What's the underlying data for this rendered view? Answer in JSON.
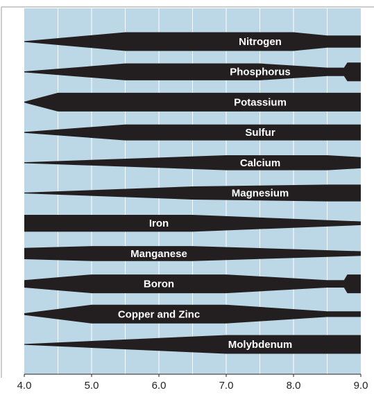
{
  "chart_data": {
    "type": "band",
    "xlim": [
      4,
      9
    ],
    "xticks": [
      {
        "value": 4,
        "label": "4.0"
      },
      {
        "value": 5,
        "label": "5.0"
      },
      {
        "value": 6,
        "label": "6.0"
      },
      {
        "value": 7,
        "label": "7.0"
      },
      {
        "value": 8,
        "label": "8.0"
      },
      {
        "value": 9,
        "label": "9.0"
      }
    ],
    "grid_xticks": [
      4.5,
      5,
      5.5,
      6,
      6.5,
      7,
      7.5,
      8,
      8.5
    ],
    "color": "#231f20",
    "background": "#bcd7e6",
    "grid": true,
    "series": [
      {
        "name": "Nitrogen",
        "points": [
          [
            4,
            0.05
          ],
          [
            5.5,
            1
          ],
          [
            8,
            1
          ],
          [
            8.5,
            0.65
          ],
          [
            9,
            0.65
          ]
        ]
      },
      {
        "name": "Phosphorus",
        "points": [
          [
            4,
            0.05
          ],
          [
            5.5,
            0.9
          ],
          [
            7.5,
            0.9
          ],
          [
            8.5,
            0.45
          ],
          [
            8.75,
            0.45
          ],
          [
            8.8,
            1
          ],
          [
            9,
            1
          ]
        ]
      },
      {
        "name": "Potassium",
        "points": [
          [
            4,
            0.05
          ],
          [
            4.5,
            1
          ],
          [
            9,
            1
          ]
        ]
      },
      {
        "name": "Sulfur",
        "points": [
          [
            4,
            0.05
          ],
          [
            5.5,
            0.85
          ],
          [
            9,
            0.85
          ]
        ]
      },
      {
        "name": "Calcium",
        "points": [
          [
            4,
            0.05
          ],
          [
            7,
            0.8
          ],
          [
            8.5,
            0.8
          ],
          [
            9,
            0.6
          ]
        ]
      },
      {
        "name": "Magnesium",
        "points": [
          [
            4,
            0.05
          ],
          [
            6.5,
            0.7
          ],
          [
            8.5,
            0.9
          ],
          [
            9,
            0.9
          ]
        ]
      },
      {
        "name": "Iron",
        "points": [
          [
            4,
            0.9
          ],
          [
            6.5,
            0.9
          ],
          [
            9,
            0.2
          ]
        ]
      },
      {
        "name": "Manganese",
        "points": [
          [
            4,
            0.6
          ],
          [
            5,
            0.8
          ],
          [
            6.5,
            0.8
          ],
          [
            9,
            0.25
          ]
        ]
      },
      {
        "name": "Boron",
        "points": [
          [
            4,
            0.4
          ],
          [
            5,
            1
          ],
          [
            7,
            1
          ],
          [
            8.5,
            0.4
          ],
          [
            8.75,
            0.4
          ],
          [
            8.8,
            1
          ],
          [
            9,
            1
          ]
        ]
      },
      {
        "name": "Copper and Zinc",
        "points": [
          [
            4,
            0.1
          ],
          [
            5,
            1
          ],
          [
            7,
            1
          ],
          [
            8.5,
            0.3
          ],
          [
            9,
            0.3
          ]
        ]
      },
      {
        "name": "Molybdenum",
        "points": [
          [
            4,
            0.05
          ],
          [
            7,
            1
          ],
          [
            9,
            1
          ]
        ]
      }
    ]
  }
}
